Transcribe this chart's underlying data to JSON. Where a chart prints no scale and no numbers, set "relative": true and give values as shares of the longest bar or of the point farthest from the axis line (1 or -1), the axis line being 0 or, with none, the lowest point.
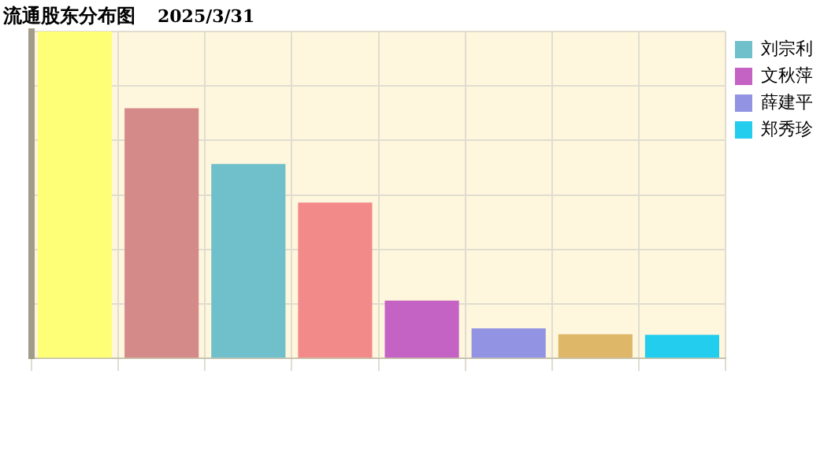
{
  "chart_data": {
    "type": "bar",
    "title": "流通股东分布图",
    "subtitle": "2025/3/31",
    "relative": true,
    "stacked": true,
    "categories": [
      null,
      null,
      null,
      null,
      null,
      null,
      null,
      null
    ],
    "series": [
      {
        "color": "#ffff77",
        "values": [
          1,
          null,
          null,
          null,
          null,
          null,
          null,
          null
        ]
      },
      {
        "color": "#d58a8a",
        "values": [
          null,
          0.765,
          null,
          null,
          null,
          null,
          null,
          null
        ]
      },
      {
        "name": "刘宗利",
        "color": "#70c0cc",
        "values": [
          null,
          null,
          0.595,
          null,
          null,
          null,
          null,
          null
        ]
      },
      {
        "color": "#f38a8a",
        "values": [
          null,
          null,
          null,
          0.477,
          null,
          null,
          null,
          null
        ]
      },
      {
        "name": "文秋萍",
        "color": "#c463c4",
        "values": [
          null,
          null,
          null,
          null,
          0.177,
          null,
          null,
          null
        ]
      },
      {
        "name": "薛建平",
        "color": "#9393e3",
        "values": [
          null,
          null,
          null,
          null,
          null,
          0.092,
          null,
          null
        ]
      },
      {
        "color": "#dfb769",
        "values": [
          null,
          null,
          null,
          null,
          null,
          null,
          0.074,
          null
        ]
      },
      {
        "name": "郑秀珍",
        "color": "#22cdee",
        "values": [
          null,
          null,
          null,
          null,
          null,
          null,
          null,
          0.072
        ]
      }
    ],
    "grid": true,
    "legend": "right"
  }
}
